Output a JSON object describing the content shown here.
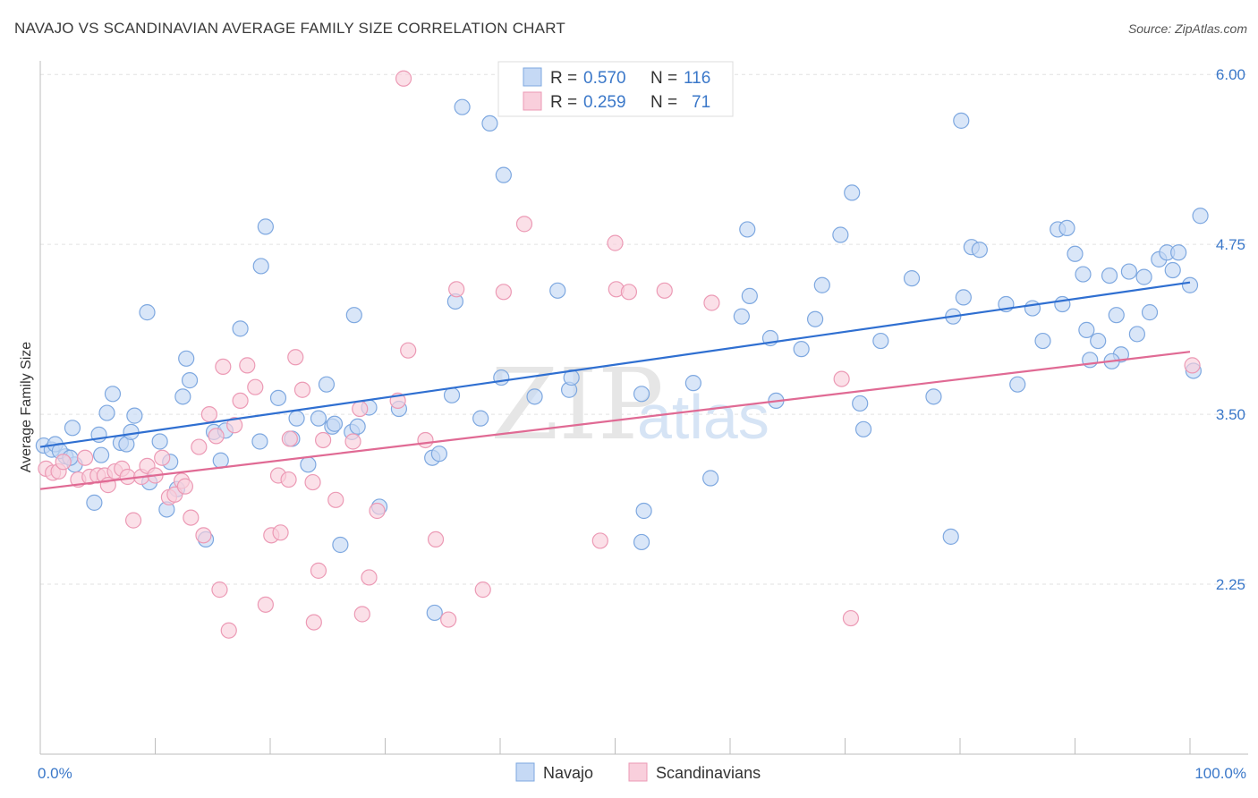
{
  "title": "NAVAJO VS SCANDINAVIAN AVERAGE FAMILY SIZE CORRELATION CHART",
  "source": "Source: ZipAtlas.com",
  "watermark": {
    "zip": "ZIP",
    "atlas": "atlas"
  },
  "legend": {
    "r_label": "R =",
    "n_label": "N =",
    "rows": [
      {
        "r": "0.570",
        "n": "116"
      },
      {
        "r": "0.259",
        "n": "71"
      }
    ]
  },
  "colors": {
    "navajo_fill": "#c5d9f5",
    "navajo_stroke": "#7ea8e0",
    "navajo_line": "#2f6fd1",
    "scand_fill": "#f9cfdc",
    "scand_stroke": "#ec9ab5",
    "scand_line": "#e06a94",
    "grid": "#e2e2e2",
    "tick_text": "#3b78c9"
  },
  "chart_data": {
    "type": "scatter",
    "title": "NAVAJO VS SCANDINAVIAN AVERAGE FAMILY SIZE CORRELATION CHART",
    "xlabel": "",
    "ylabel": "Average Family Size",
    "xlim": [
      0,
      100
    ],
    "ylim": [
      1.0,
      6.1
    ],
    "x_tick_labels": [
      "0.0%",
      "100.0%"
    ],
    "y_ticks": [
      2.25,
      3.5,
      4.75,
      6.0
    ],
    "y_tick_labels": [
      "2.25",
      "3.50",
      "4.75",
      "6.00"
    ],
    "grid": true,
    "legend_position": "bottom-center",
    "series": [
      {
        "name": "Navajo",
        "color": "#7ea8e0",
        "r": 0.57,
        "n": 116,
        "trend": {
          "x": [
            0,
            100
          ],
          "y": [
            3.26,
            4.47
          ]
        },
        "points": [
          [
            0.3,
            3.27
          ],
          [
            1.0,
            3.24
          ],
          [
            1.3,
            3.28
          ],
          [
            2.2,
            3.19
          ],
          [
            3.0,
            3.13
          ],
          [
            2.8,
            3.4
          ],
          [
            5.3,
            3.2
          ],
          [
            5.1,
            3.35
          ],
          [
            5.8,
            3.51
          ],
          [
            6.3,
            3.65
          ],
          [
            4.7,
            2.85
          ],
          [
            7.0,
            3.29
          ],
          [
            7.5,
            3.28
          ],
          [
            7.9,
            3.37
          ],
          [
            8.2,
            3.49
          ],
          [
            9.5,
            3.0
          ],
          [
            9.3,
            4.25
          ],
          [
            10.4,
            3.3
          ],
          [
            11.0,
            2.8
          ],
          [
            11.3,
            3.15
          ],
          [
            11.9,
            2.95
          ],
          [
            12.4,
            3.63
          ],
          [
            12.7,
            3.91
          ],
          [
            13.0,
            3.75
          ],
          [
            14.4,
            2.58
          ],
          [
            15.1,
            3.37
          ],
          [
            15.7,
            3.16
          ],
          [
            16.1,
            3.38
          ],
          [
            17.4,
            4.13
          ],
          [
            19.1,
            3.3
          ],
          [
            19.2,
            4.59
          ],
          [
            19.6,
            4.88
          ],
          [
            20.7,
            3.62
          ],
          [
            21.9,
            3.32
          ],
          [
            22.3,
            3.47
          ],
          [
            23.3,
            3.13
          ],
          [
            24.2,
            3.47
          ],
          [
            24.9,
            3.72
          ],
          [
            25.4,
            3.41
          ],
          [
            25.6,
            3.43
          ],
          [
            26.1,
            2.54
          ],
          [
            27.1,
            3.37
          ],
          [
            27.3,
            4.23
          ],
          [
            27.6,
            3.41
          ],
          [
            28.6,
            3.55
          ],
          [
            29.5,
            2.82
          ],
          [
            31.2,
            3.54
          ],
          [
            34.1,
            3.18
          ],
          [
            34.7,
            3.21
          ],
          [
            34.3,
            2.04
          ],
          [
            35.8,
            3.64
          ],
          [
            36.1,
            4.33
          ],
          [
            36.7,
            5.76
          ],
          [
            38.3,
            3.47
          ],
          [
            39.1,
            5.64
          ],
          [
            40.1,
            3.77
          ],
          [
            40.3,
            5.26
          ],
          [
            43.0,
            3.63
          ],
          [
            45.0,
            4.41
          ],
          [
            46.0,
            3.68
          ],
          [
            46.2,
            3.77
          ],
          [
            52.3,
            3.65
          ],
          [
            52.3,
            2.56
          ],
          [
            52.5,
            2.79
          ],
          [
            56.8,
            3.73
          ],
          [
            58.3,
            3.03
          ],
          [
            61.0,
            4.22
          ],
          [
            61.5,
            4.86
          ],
          [
            61.7,
            4.37
          ],
          [
            63.5,
            4.06
          ],
          [
            64.0,
            3.6
          ],
          [
            66.2,
            3.98
          ],
          [
            67.4,
            4.2
          ],
          [
            68.0,
            4.45
          ],
          [
            69.6,
            4.82
          ],
          [
            70.6,
            5.13
          ],
          [
            71.3,
            3.58
          ],
          [
            71.6,
            3.39
          ],
          [
            73.1,
            4.04
          ],
          [
            75.8,
            4.5
          ],
          [
            77.7,
            3.63
          ],
          [
            79.4,
            4.22
          ],
          [
            80.3,
            4.36
          ],
          [
            79.2,
            2.6
          ],
          [
            81.0,
            4.73
          ],
          [
            81.7,
            4.71
          ],
          [
            84.0,
            4.31
          ],
          [
            85.0,
            3.72
          ],
          [
            86.3,
            4.28
          ],
          [
            87.2,
            4.04
          ],
          [
            88.5,
            4.86
          ],
          [
            88.9,
            4.31
          ],
          [
            89.3,
            4.87
          ],
          [
            90.0,
            4.68
          ],
          [
            90.7,
            4.53
          ],
          [
            91.0,
            4.12
          ],
          [
            91.3,
            3.9
          ],
          [
            92.0,
            4.04
          ],
          [
            93.0,
            4.52
          ],
          [
            93.6,
            4.23
          ],
          [
            94.0,
            3.94
          ],
          [
            94.7,
            4.55
          ],
          [
            93.2,
            3.89
          ],
          [
            95.4,
            4.09
          ],
          [
            96.0,
            4.51
          ],
          [
            96.5,
            4.25
          ],
          [
            97.3,
            4.64
          ],
          [
            98.0,
            4.69
          ],
          [
            98.5,
            4.56
          ],
          [
            99.0,
            4.69
          ],
          [
            100.0,
            4.45
          ],
          [
            100.3,
            3.82
          ],
          [
            100.9,
            4.96
          ],
          [
            80.1,
            5.66
          ],
          [
            1.7,
            3.23
          ],
          [
            2.6,
            3.18
          ]
        ]
      },
      {
        "name": "Scandinavians",
        "color": "#ec9ab5",
        "r": 0.259,
        "n": 71,
        "trend": {
          "x": [
            0,
            100
          ],
          "y": [
            2.95,
            3.96
          ]
        },
        "points": [
          [
            0.5,
            3.1
          ],
          [
            1.1,
            3.07
          ],
          [
            1.6,
            3.08
          ],
          [
            2.0,
            3.15
          ],
          [
            3.3,
            3.02
          ],
          [
            3.9,
            3.18
          ],
          [
            4.3,
            3.04
          ],
          [
            5.0,
            3.05
          ],
          [
            5.6,
            3.05
          ],
          [
            5.9,
            2.98
          ],
          [
            6.5,
            3.08
          ],
          [
            7.1,
            3.1
          ],
          [
            7.6,
            3.04
          ],
          [
            8.1,
            2.72
          ],
          [
            8.8,
            3.04
          ],
          [
            9.3,
            3.12
          ],
          [
            10.0,
            3.05
          ],
          [
            10.6,
            3.18
          ],
          [
            11.2,
            2.89
          ],
          [
            11.7,
            2.91
          ],
          [
            12.3,
            3.01
          ],
          [
            12.6,
            2.97
          ],
          [
            13.1,
            2.74
          ],
          [
            13.8,
            3.26
          ],
          [
            14.2,
            2.61
          ],
          [
            14.7,
            3.5
          ],
          [
            15.3,
            3.34
          ],
          [
            15.6,
            2.21
          ],
          [
            15.9,
            3.85
          ],
          [
            16.4,
            1.91
          ],
          [
            16.9,
            3.42
          ],
          [
            17.4,
            3.6
          ],
          [
            18.7,
            3.7
          ],
          [
            19.6,
            2.1
          ],
          [
            20.1,
            2.61
          ],
          [
            20.7,
            3.05
          ],
          [
            20.9,
            2.63
          ],
          [
            21.6,
            3.02
          ],
          [
            21.7,
            3.32
          ],
          [
            22.2,
            3.92
          ],
          [
            22.8,
            3.68
          ],
          [
            23.7,
            3.0
          ],
          [
            23.8,
            1.97
          ],
          [
            24.2,
            2.35
          ],
          [
            24.6,
            3.31
          ],
          [
            25.7,
            2.87
          ],
          [
            27.2,
            3.3
          ],
          [
            27.8,
            3.54
          ],
          [
            28.0,
            2.03
          ],
          [
            28.6,
            2.3
          ],
          [
            29.3,
            2.79
          ],
          [
            31.1,
            3.6
          ],
          [
            31.6,
            5.97
          ],
          [
            32.0,
            3.97
          ],
          [
            33.5,
            3.31
          ],
          [
            34.4,
            2.58
          ],
          [
            35.5,
            1.99
          ],
          [
            36.2,
            4.42
          ],
          [
            38.5,
            2.21
          ],
          [
            40.3,
            4.4
          ],
          [
            42.1,
            4.9
          ],
          [
            48.7,
            2.57
          ],
          [
            50.0,
            4.76
          ],
          [
            50.1,
            4.42
          ],
          [
            51.2,
            4.4
          ],
          [
            54.3,
            4.41
          ],
          [
            58.4,
            4.32
          ],
          [
            69.7,
            3.76
          ],
          [
            70.5,
            2.0
          ],
          [
            100.2,
            3.86
          ],
          [
            18.0,
            3.86
          ]
        ]
      }
    ]
  },
  "bottom_legend": [
    "Navajo",
    "Scandinavians"
  ]
}
